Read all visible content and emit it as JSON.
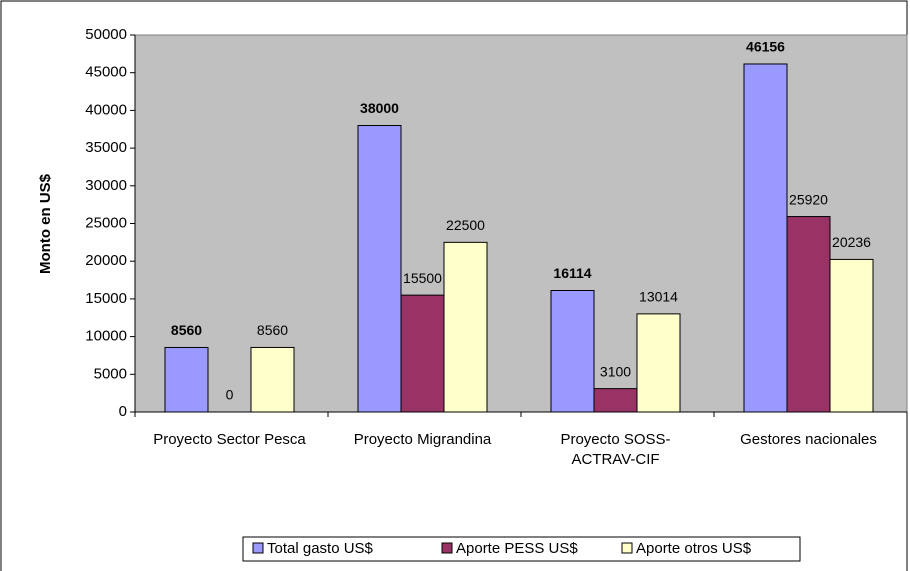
{
  "chart_data": {
    "type": "bar",
    "categories": [
      "Proyecto Sector Pesca",
      "Proyecto Migrandina",
      "Proyecto SOSS-ACTRAV-CIF",
      "Gestores nacionales"
    ],
    "series": [
      {
        "name": "Total gasto US$",
        "color": "#9999ff",
        "values": [
          8560,
          38000,
          16114,
          46156
        ]
      },
      {
        "name": "Aporte PESS US$",
        "color": "#993366",
        "values": [
          0,
          15500,
          3100,
          25920
        ]
      },
      {
        "name": "Aporte otros US$",
        "color": "#ffffcc",
        "values": [
          8560,
          22500,
          13014,
          20236
        ]
      }
    ],
    "y_label": "Monto en US$",
    "ylim": [
      0,
      50000
    ],
    "yticks": [
      0,
      5000,
      10000,
      15000,
      20000,
      25000,
      30000,
      35000,
      40000,
      45000,
      50000
    ],
    "plot_background": "#c0c0c0"
  }
}
